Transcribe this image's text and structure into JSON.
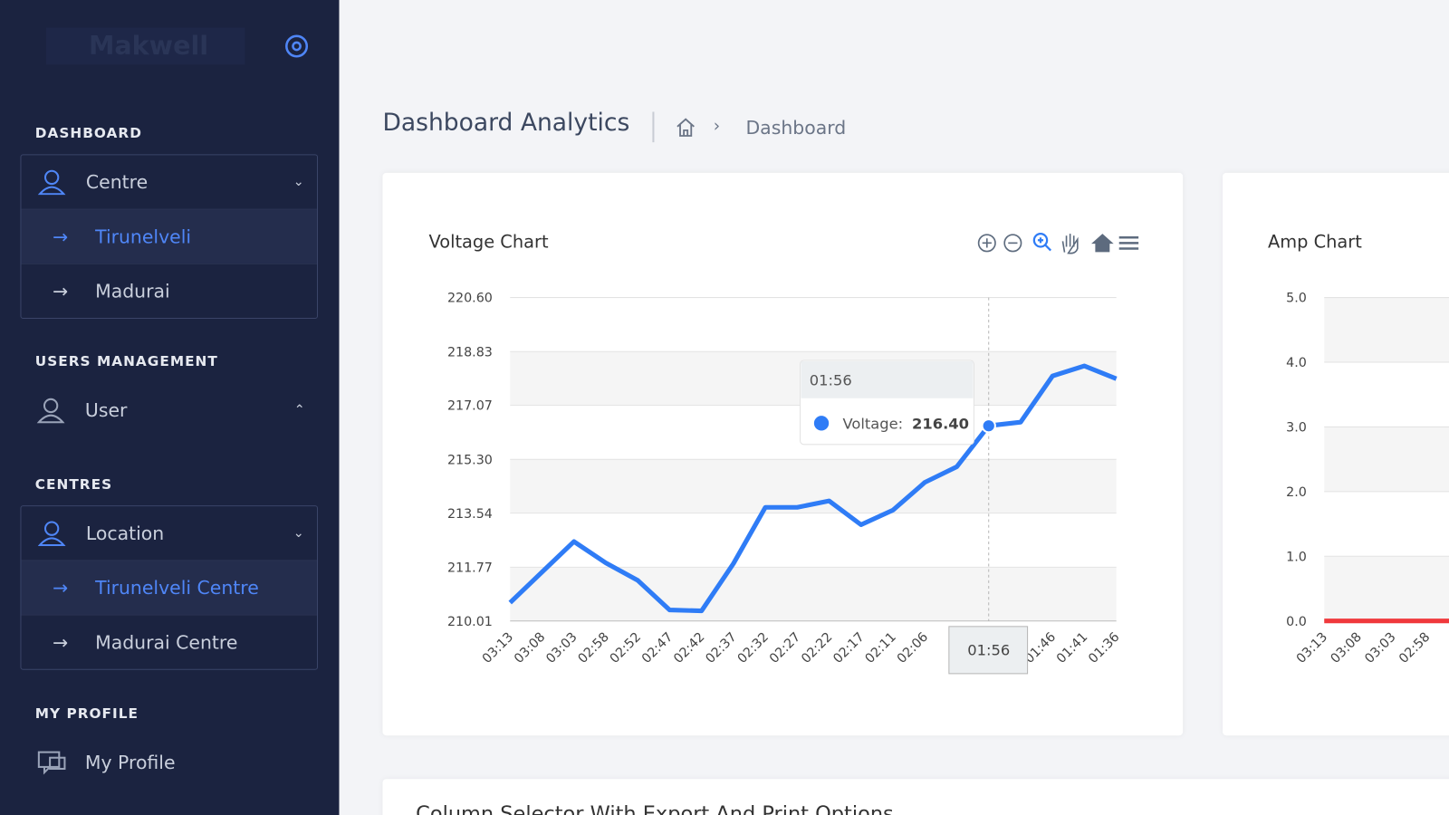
{
  "sidebar": {
    "brand": "Makwell",
    "sections": [
      {
        "title": "DASHBOARD",
        "items": [
          {
            "label": "Centre",
            "children": [
              "Tirunelveli",
              "Madurai"
            ]
          }
        ]
      },
      {
        "title": "USERS MANAGEMENT",
        "items": [
          {
            "label": "User"
          }
        ]
      },
      {
        "title": "CENTRES",
        "items": [
          {
            "label": "Location",
            "children": [
              "Tirunelveli Centre",
              "Madurai Centre"
            ]
          }
        ]
      },
      {
        "title": "MY PROFILE",
        "items": [
          {
            "label": "My Profile"
          }
        ]
      }
    ]
  },
  "header": {
    "title": "Dashboard Analytics",
    "breadcrumb": "Dashboard"
  },
  "chart_data": [
    {
      "type": "line",
      "title": "Voltage Chart",
      "color": "#2f7cf6",
      "categories": [
        "03:13",
        "03:08",
        "03:03",
        "02:58",
        "02:52",
        "02:47",
        "02:42",
        "02:37",
        "02:32",
        "02:27",
        "02:22",
        "02:17",
        "02:11",
        "02:06",
        null,
        "01:56",
        null,
        "01:46",
        "01:41",
        "01:36"
      ],
      "values": [
        210.61,
        211.61,
        212.61,
        211.91,
        211.34,
        210.37,
        210.34,
        211.89,
        213.73,
        213.73,
        213.94,
        213.16,
        213.64,
        214.55,
        215.06,
        216.4,
        216.52,
        218.03,
        218.36,
        217.94
      ],
      "ylim": [
        210.01,
        220.6
      ],
      "yticks": [
        210.01,
        211.77,
        213.54,
        {
          "value": 215.3,
          "label": "215.30"
        },
        217.07,
        218.83,
        {
          "value": 220.6,
          "label": "220.60"
        }
      ],
      "grid": true,
      "tooltip": {
        "index": 15,
        "label": "Voltage:",
        "value_label": "216.40"
      }
    },
    {
      "type": "line",
      "title": "Amp Chart",
      "color": "#f0393c",
      "categories": [
        "03:13",
        "03:08",
        "03:03",
        "02:58",
        null
      ],
      "values": [
        0,
        0,
        0,
        0,
        0
      ],
      "ylim": [
        0,
        5
      ],
      "yticks": [
        {
          "value": 0,
          "label": "0.0"
        },
        {
          "value": 1,
          "label": "1.0"
        },
        {
          "value": 2,
          "label": "2.0"
        },
        {
          "value": 3,
          "label": "3.0"
        },
        {
          "value": 4,
          "label": "4.0"
        },
        {
          "value": 5,
          "label": "5.0"
        }
      ],
      "grid": true
    }
  ],
  "bottom_card": {
    "title": "Column Selector With Export And Print Options"
  }
}
